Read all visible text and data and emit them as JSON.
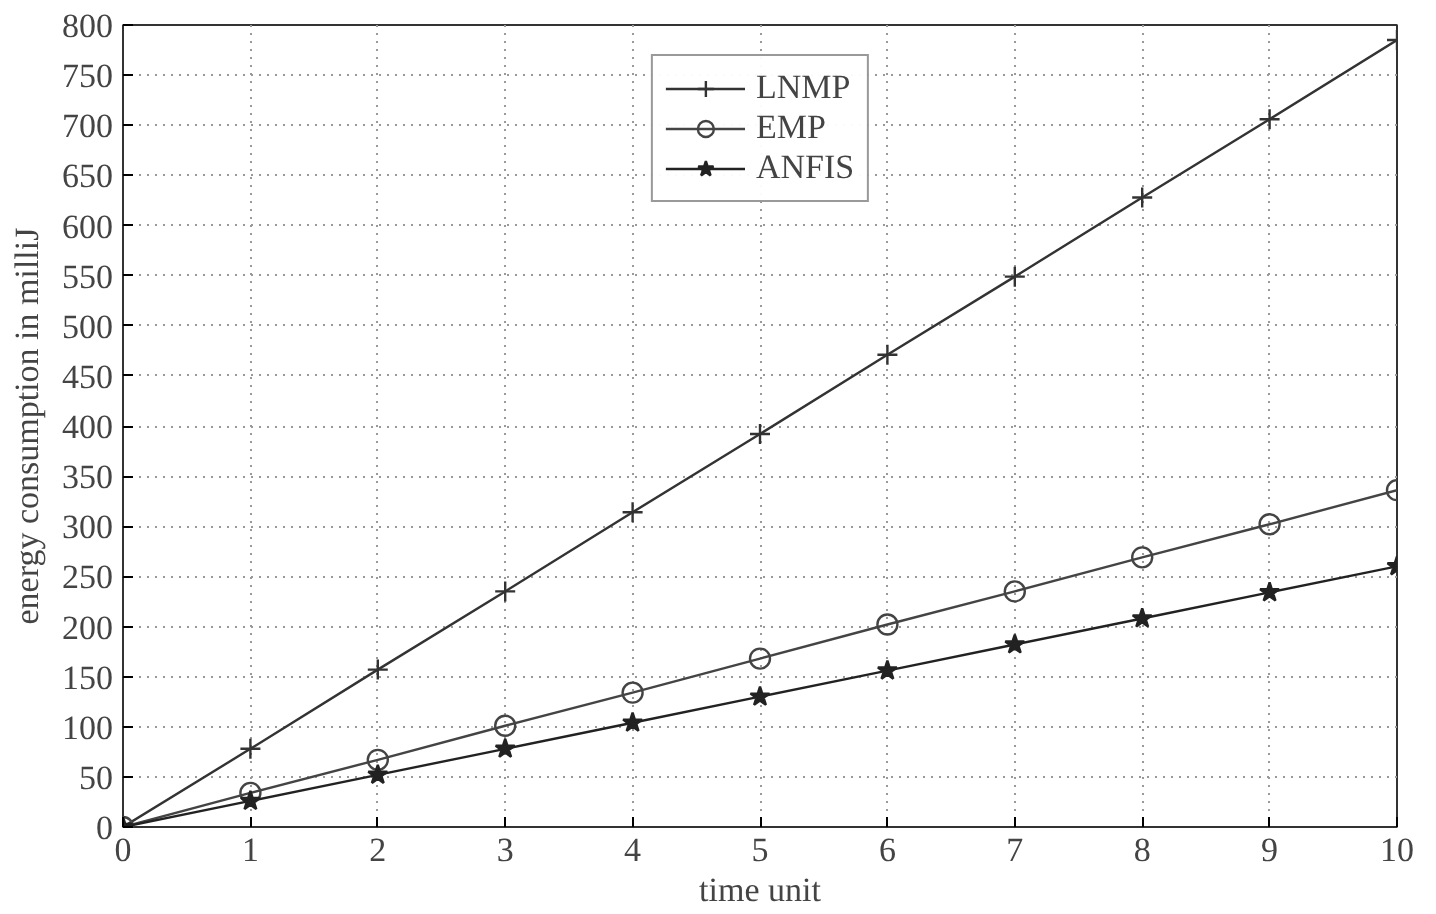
{
  "chart_data": {
    "type": "line",
    "xlabel": "time unit",
    "ylabel": "energy consumption in milliJ",
    "x": [
      0,
      1,
      2,
      3,
      4,
      5,
      6,
      7,
      8,
      9,
      10
    ],
    "series": [
      {
        "name": "LNMP",
        "color": "#333333",
        "marker": "cross",
        "values": [
          0,
          78,
          157,
          235,
          314,
          392,
          471,
          549,
          628,
          706,
          785
        ]
      },
      {
        "name": "EMP",
        "color": "#444444",
        "marker": "circle",
        "values": [
          0,
          34,
          67,
          101,
          134,
          168,
          202,
          235,
          269,
          302,
          336
        ]
      },
      {
        "name": "ANFIS",
        "color": "#222222",
        "marker": "star",
        "values": [
          0,
          26,
          52,
          78,
          104,
          130,
          156,
          182,
          208,
          234,
          260
        ]
      }
    ],
    "xlim": [
      0,
      10
    ],
    "ylim": [
      0,
      800
    ],
    "xticks": [
      0,
      1,
      2,
      3,
      4,
      5,
      6,
      7,
      8,
      9,
      10
    ],
    "yticks": [
      0,
      50,
      100,
      150,
      200,
      250,
      300,
      350,
      400,
      450,
      500,
      550,
      600,
      650,
      700,
      750,
      800
    ],
    "grid": true,
    "legend": "top",
    "line_style": "solid"
  }
}
